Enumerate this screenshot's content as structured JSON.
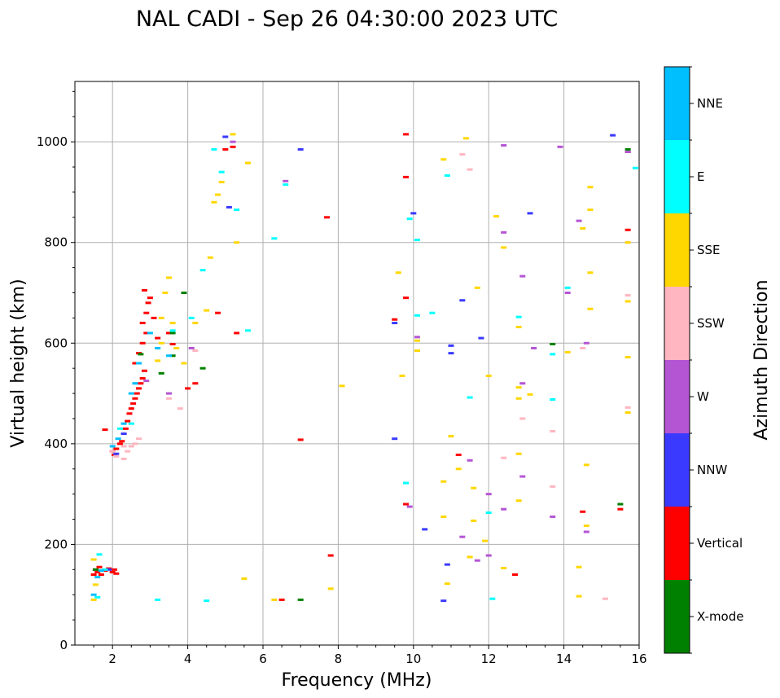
{
  "chart_data": {
    "type": "scatter",
    "title": "NAL CADI - Sep 26 04:30:00 2023 UTC",
    "xlabel": "Frequency (MHz)",
    "ylabel": "Virtual height (km)",
    "xlim": [
      1,
      16
    ],
    "ylim": [
      0,
      1120
    ],
    "xticks": [
      2,
      4,
      6,
      8,
      10,
      12,
      14,
      16
    ],
    "yticks": [
      0,
      200,
      400,
      600,
      800,
      1000
    ],
    "grid": true,
    "colorbar": {
      "label": "Azimuth Direction",
      "position": "right",
      "categories": [
        {
          "name": "X-mode",
          "color": "#008000"
        },
        {
          "name": "Vertical",
          "color": "#ff0000"
        },
        {
          "name": "NNW",
          "color": "#3a3aff"
        },
        {
          "name": "W",
          "color": "#b455d4"
        },
        {
          "name": "SSW",
          "color": "#ffb6c1"
        },
        {
          "name": "SSE",
          "color": "#ffd700"
        },
        {
          "name": "E",
          "color": "#00ffff"
        },
        {
          "name": "NNE",
          "color": "#00bfff"
        }
      ]
    },
    "series": [
      {
        "name": "Vertical",
        "points": [
          [
            1.5,
            140
          ],
          [
            1.55,
            150
          ],
          [
            1.6,
            145
          ],
          [
            1.65,
            155
          ],
          [
            1.7,
            140
          ],
          [
            1.8,
            148
          ],
          [
            1.9,
            152
          ],
          [
            2.0,
            145
          ],
          [
            2.05,
            150
          ],
          [
            2.1,
            142
          ],
          [
            1.8,
            428
          ],
          [
            2.0,
            385
          ],
          [
            2.05,
            378
          ],
          [
            2.1,
            390
          ],
          [
            2.2,
            400
          ],
          [
            2.25,
            405
          ],
          [
            2.3,
            420
          ],
          [
            2.35,
            430
          ],
          [
            2.4,
            445
          ],
          [
            2.45,
            460
          ],
          [
            2.5,
            470
          ],
          [
            2.55,
            480
          ],
          [
            2.6,
            490
          ],
          [
            2.65,
            500
          ],
          [
            2.7,
            510
          ],
          [
            2.75,
            520
          ],
          [
            2.8,
            530
          ],
          [
            2.85,
            545
          ],
          [
            2.6,
            560
          ],
          [
            2.7,
            580
          ],
          [
            2.8,
            600
          ],
          [
            2.9,
            620
          ],
          [
            2.8,
            640
          ],
          [
            2.9,
            660
          ],
          [
            2.95,
            680
          ],
          [
            2.85,
            705
          ],
          [
            3.0,
            690
          ],
          [
            3.1,
            650
          ],
          [
            3.2,
            610
          ],
          [
            3.5,
            620
          ],
          [
            3.6,
            598
          ],
          [
            4.0,
            510
          ],
          [
            4.2,
            520
          ],
          [
            4.8,
            660
          ],
          [
            5.3,
            620
          ],
          [
            5.0,
            985
          ],
          [
            5.2,
            990
          ],
          [
            6.5,
            90
          ],
          [
            7.0,
            408
          ],
          [
            7.8,
            178
          ],
          [
            7.7,
            850
          ],
          [
            9.5,
            647
          ],
          [
            9.8,
            690
          ],
          [
            9.8,
            930
          ],
          [
            9.8,
            280
          ],
          [
            9.8,
            1015
          ],
          [
            11.2,
            378
          ],
          [
            12.7,
            140
          ],
          [
            14.5,
            265
          ],
          [
            15.5,
            270
          ],
          [
            15.7,
            825
          ],
          [
            15.7,
            980
          ]
        ]
      },
      {
        "name": "X-mode",
        "points": [
          [
            1.55,
            150
          ],
          [
            2.75,
            578
          ],
          [
            3.3,
            540
          ],
          [
            3.6,
            575
          ],
          [
            3.6,
            620
          ],
          [
            3.9,
            700
          ],
          [
            4.4,
            550
          ],
          [
            7.0,
            90
          ],
          [
            13.7,
            598
          ],
          [
            15.5,
            280
          ],
          [
            15.7,
            985
          ]
        ]
      },
      {
        "name": "NNW",
        "points": [
          [
            1.9,
            150
          ],
          [
            2.1,
            380
          ],
          [
            2.3,
            420
          ],
          [
            5.0,
            1010
          ],
          [
            5.1,
            870
          ],
          [
            7.0,
            985
          ],
          [
            9.5,
            410
          ],
          [
            9.5,
            640
          ],
          [
            10.0,
            858
          ],
          [
            10.3,
            230
          ],
          [
            10.8,
            88
          ],
          [
            10.9,
            160
          ],
          [
            11.0,
            580
          ],
          [
            11.0,
            595
          ],
          [
            11.3,
            685
          ],
          [
            11.8,
            610
          ],
          [
            13.1,
            858
          ],
          [
            15.3,
            1013
          ]
        ]
      },
      {
        "name": "W",
        "points": [
          [
            2.9,
            525
          ],
          [
            3.5,
            500
          ],
          [
            4.1,
            590
          ],
          [
            5.2,
            1000
          ],
          [
            6.6,
            922
          ],
          [
            9.9,
            275
          ],
          [
            10.1,
            612
          ],
          [
            11.3,
            215
          ],
          [
            11.5,
            367
          ],
          [
            11.7,
            168
          ],
          [
            12.0,
            300
          ],
          [
            12.0,
            178
          ],
          [
            12.4,
            270
          ],
          [
            12.4,
            820
          ],
          [
            12.4,
            993
          ],
          [
            12.9,
            733
          ],
          [
            12.9,
            520
          ],
          [
            12.9,
            335
          ],
          [
            13.2,
            590
          ],
          [
            13.7,
            255
          ],
          [
            13.9,
            990
          ],
          [
            14.1,
            700
          ],
          [
            14.4,
            843
          ],
          [
            14.6,
            600
          ],
          [
            14.6,
            225
          ],
          [
            15.7,
            980
          ]
        ]
      },
      {
        "name": "SSW",
        "points": [
          [
            2.0,
            385
          ],
          [
            2.1,
            375
          ],
          [
            2.3,
            370
          ],
          [
            2.4,
            385
          ],
          [
            2.5,
            395
          ],
          [
            2.6,
            400
          ],
          [
            2.7,
            410
          ],
          [
            2.3,
            395
          ],
          [
            3.5,
            490
          ],
          [
            3.8,
            470
          ],
          [
            4.2,
            585
          ],
          [
            11.3,
            975
          ],
          [
            11.5,
            945
          ],
          [
            12.4,
            372
          ],
          [
            12.9,
            450
          ],
          [
            13.7,
            425
          ],
          [
            13.7,
            315
          ],
          [
            14.5,
            590
          ],
          [
            15.1,
            92
          ],
          [
            15.7,
            695
          ],
          [
            15.7,
            472
          ],
          [
            15.7,
            800
          ]
        ]
      },
      {
        "name": "SSE",
        "points": [
          [
            1.5,
            170
          ],
          [
            1.55,
            120
          ],
          [
            1.5,
            90
          ],
          [
            3.2,
            565
          ],
          [
            3.3,
            600
          ],
          [
            3.3,
            650
          ],
          [
            3.4,
            700
          ],
          [
            3.5,
            730
          ],
          [
            3.6,
            640
          ],
          [
            3.7,
            590
          ],
          [
            3.9,
            560
          ],
          [
            4.2,
            640
          ],
          [
            4.5,
            665
          ],
          [
            4.6,
            770
          ],
          [
            4.7,
            880
          ],
          [
            4.8,
            895
          ],
          [
            4.9,
            920
          ],
          [
            5.2,
            1015
          ],
          [
            5.3,
            800
          ],
          [
            5.5,
            132
          ],
          [
            5.6,
            958
          ],
          [
            6.3,
            90
          ],
          [
            7.8,
            112
          ],
          [
            8.1,
            515
          ],
          [
            9.6,
            740
          ],
          [
            9.7,
            535
          ],
          [
            10.1,
            585
          ],
          [
            10.1,
            605
          ],
          [
            10.8,
            965
          ],
          [
            10.8,
            325
          ],
          [
            10.8,
            255
          ],
          [
            10.9,
            122
          ],
          [
            11.0,
            415
          ],
          [
            11.2,
            350
          ],
          [
            11.4,
            1007
          ],
          [
            11.5,
            175
          ],
          [
            11.6,
            312
          ],
          [
            11.6,
            247
          ],
          [
            11.7,
            710
          ],
          [
            11.9,
            207
          ],
          [
            12.0,
            535
          ],
          [
            12.2,
            852
          ],
          [
            12.4,
            790
          ],
          [
            12.4,
            153
          ],
          [
            12.8,
            287
          ],
          [
            12.8,
            380
          ],
          [
            12.8,
            512
          ],
          [
            12.8,
            490
          ],
          [
            12.8,
            632
          ],
          [
            13.1,
            498
          ],
          [
            14.1,
            582
          ],
          [
            14.4,
            155
          ],
          [
            14.4,
            97
          ],
          [
            14.5,
            828
          ],
          [
            14.6,
            358
          ],
          [
            14.6,
            237
          ],
          [
            14.7,
            910
          ],
          [
            14.7,
            865
          ],
          [
            14.7,
            740
          ],
          [
            14.7,
            668
          ],
          [
            15.7,
            572
          ],
          [
            15.7,
            462
          ],
          [
            15.7,
            683
          ],
          [
            15.7,
            800
          ]
        ]
      },
      {
        "name": "E",
        "points": [
          [
            1.6,
            95
          ],
          [
            1.65,
            180
          ],
          [
            1.8,
            150
          ],
          [
            2.2,
            430
          ],
          [
            2.5,
            440
          ],
          [
            3.2,
            90
          ],
          [
            3.6,
            625
          ],
          [
            4.1,
            650
          ],
          [
            4.4,
            745
          ],
          [
            4.5,
            88
          ],
          [
            4.7,
            985
          ],
          [
            4.9,
            940
          ],
          [
            5.3,
            865
          ],
          [
            5.6,
            625
          ],
          [
            6.3,
            808
          ],
          [
            6.6,
            915
          ],
          [
            9.8,
            322
          ],
          [
            9.9,
            847
          ],
          [
            10.1,
            805
          ],
          [
            10.1,
            655
          ],
          [
            10.5,
            660
          ],
          [
            10.9,
            933
          ],
          [
            11.5,
            492
          ],
          [
            12.0,
            263
          ],
          [
            12.1,
            92
          ],
          [
            12.8,
            652
          ],
          [
            13.7,
            578
          ],
          [
            13.7,
            488
          ],
          [
            14.1,
            710
          ],
          [
            15.9,
            948
          ]
        ]
      },
      {
        "name": "NNE",
        "points": [
          [
            1.5,
            100
          ],
          [
            1.6,
            135
          ],
          [
            1.7,
            148
          ],
          [
            2.0,
            395
          ],
          [
            2.15,
            410
          ],
          [
            2.3,
            440
          ],
          [
            2.5,
            500
          ],
          [
            2.6,
            520
          ],
          [
            2.7,
            560
          ],
          [
            3.0,
            620
          ],
          [
            3.2,
            590
          ],
          [
            3.5,
            575
          ]
        ]
      }
    ]
  }
}
